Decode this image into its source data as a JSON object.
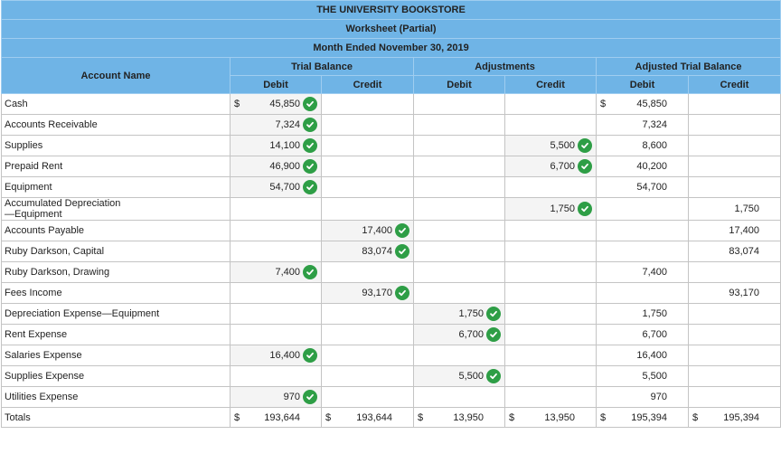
{
  "header": {
    "company": "THE UNIVERSITY BOOKSTORE",
    "title": "Worksheet (Partial)",
    "period": "Month Ended November 30, 2019"
  },
  "columns": {
    "account_name": "Account Name",
    "trial_balance": "Trial Balance",
    "adjustments": "Adjustments",
    "adjusted_trial_balance": "Adjusted Trial Balance",
    "debit": "Debit",
    "credit": "Credit"
  },
  "currency_symbol": "$",
  "check_color": "#2e9e46",
  "header_color": "#6fb4e6",
  "rows": [
    {
      "name": "Cash",
      "tb_debit": "45,850",
      "tb_debit_sym": "$",
      "tb_debit_check": true,
      "tb_credit": "",
      "adj_debit": "",
      "adj_credit": "",
      "atb_debit": "45,850",
      "atb_debit_sym": "$",
      "atb_credit": ""
    },
    {
      "name": "Accounts Receivable",
      "tb_debit": "7,324",
      "tb_debit_check": true,
      "tb_credit": "",
      "adj_debit": "",
      "adj_credit": "",
      "atb_debit": "7,324",
      "atb_credit": ""
    },
    {
      "name": "Supplies",
      "tb_debit": "14,100",
      "tb_debit_check": true,
      "tb_credit": "",
      "adj_debit": "",
      "adj_credit": "5,500",
      "adj_credit_check": true,
      "atb_debit": "8,600",
      "atb_credit": ""
    },
    {
      "name": "Prepaid Rent",
      "tb_debit": "46,900",
      "tb_debit_check": true,
      "tb_credit": "",
      "adj_debit": "",
      "adj_credit": "6,700",
      "adj_credit_check": true,
      "atb_debit": "40,200",
      "atb_credit": ""
    },
    {
      "name": "Equipment",
      "tb_debit": "54,700",
      "tb_debit_check": true,
      "tb_credit": "",
      "adj_debit": "",
      "adj_credit": "",
      "atb_debit": "54,700",
      "atb_credit": ""
    },
    {
      "name": "Accumulated Depreciation",
      "name2": "—Equipment",
      "tb_debit": "",
      "tb_credit": "",
      "adj_debit": "",
      "adj_credit": "1,750",
      "adj_credit_check": true,
      "atb_debit": "",
      "atb_credit": "1,750"
    },
    {
      "name": "Accounts Payable",
      "tb_debit": "",
      "tb_credit": "17,400",
      "tb_credit_check": true,
      "adj_debit": "",
      "adj_credit": "",
      "atb_debit": "",
      "atb_credit": "17,400"
    },
    {
      "name": "Ruby Darkson, Capital",
      "tb_debit": "",
      "tb_credit": "83,074",
      "tb_credit_check": true,
      "adj_debit": "",
      "adj_credit": "",
      "atb_debit": "",
      "atb_credit": "83,074"
    },
    {
      "name": "Ruby Darkson, Drawing",
      "tb_debit": "7,400",
      "tb_debit_check": true,
      "tb_credit": "",
      "adj_debit": "",
      "adj_credit": "",
      "atb_debit": "7,400",
      "atb_credit": ""
    },
    {
      "name": "Fees Income",
      "tb_debit": "",
      "tb_credit": "93,170",
      "tb_credit_check": true,
      "adj_debit": "",
      "adj_credit": "",
      "atb_debit": "",
      "atb_credit": "93,170"
    },
    {
      "name": "Depreciation Expense—Equipment",
      "tb_debit": "",
      "tb_credit": "",
      "adj_debit": "1,750",
      "adj_debit_check": true,
      "adj_credit": "",
      "atb_debit": "1,750",
      "atb_credit": ""
    },
    {
      "name": "Rent Expense",
      "tb_debit": "",
      "tb_credit": "",
      "adj_debit": "6,700",
      "adj_debit_check": true,
      "adj_credit": "",
      "atb_debit": "6,700",
      "atb_credit": ""
    },
    {
      "name": "Salaries Expense",
      "tb_debit": "16,400",
      "tb_debit_check": true,
      "tb_credit": "",
      "adj_debit": "",
      "adj_credit": "",
      "atb_debit": "16,400",
      "atb_credit": ""
    },
    {
      "name": "Supplies Expense",
      "tb_debit": "",
      "tb_credit": "",
      "adj_debit": "5,500",
      "adj_debit_check": true,
      "adj_credit": "",
      "atb_debit": "5,500",
      "atb_credit": ""
    },
    {
      "name": "Utilities Expense",
      "tb_debit": "970",
      "tb_debit_check": true,
      "tb_credit": "",
      "adj_debit": "",
      "adj_credit": "",
      "atb_debit": "970",
      "atb_credit": ""
    }
  ],
  "totals": {
    "label": "Totals",
    "tb_debit": "193,644",
    "tb_credit": "193,644",
    "adj_debit": "13,950",
    "adj_credit": "13,950",
    "atb_debit": "195,394",
    "atb_credit": "195,394"
  }
}
